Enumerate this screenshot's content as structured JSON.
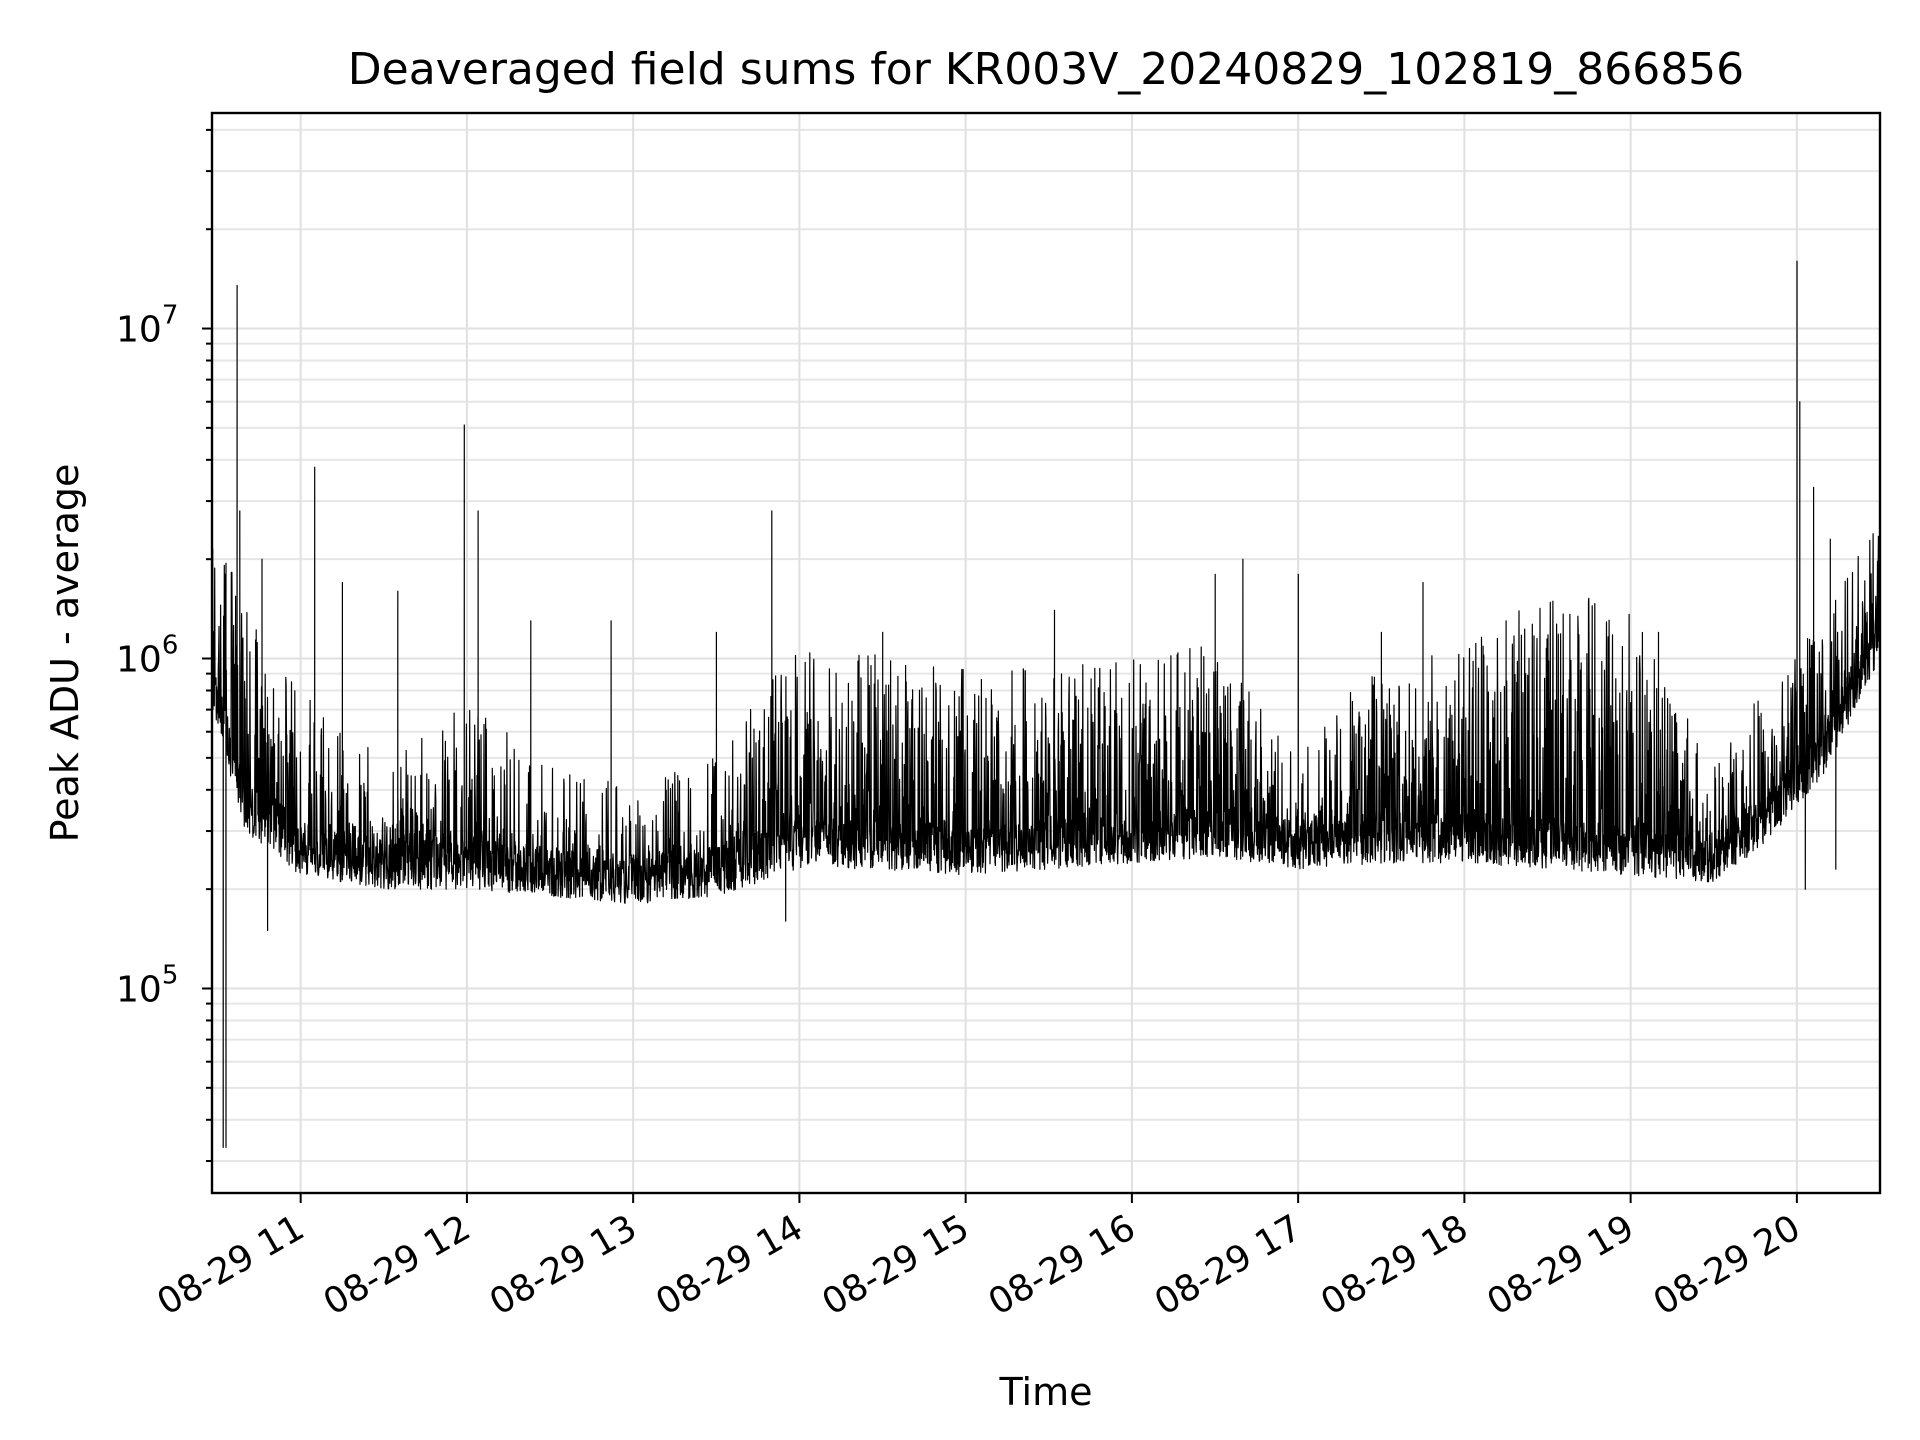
{
  "chart_data": {
    "type": "line",
    "title": "Deaveraged field sums for KR003V_20240829_102819_866856",
    "xlabel": "Time",
    "ylabel": "Peak ADU - average",
    "yscale": "log",
    "ylim": [
      24000,
      45000000
    ],
    "xlim": [
      "08-29 10:28",
      "08-29 20:30"
    ],
    "x_ticks": [
      {
        "value": "08-29 11:00",
        "label": "08-29 11"
      },
      {
        "value": "08-29 12:00",
        "label": "08-29 12"
      },
      {
        "value": "08-29 13:00",
        "label": "08-29 13"
      },
      {
        "value": "08-29 14:00",
        "label": "08-29 14"
      },
      {
        "value": "08-29 15:00",
        "label": "08-29 15"
      },
      {
        "value": "08-29 16:00",
        "label": "08-29 16"
      },
      {
        "value": "08-29 17:00",
        "label": "08-29 17"
      },
      {
        "value": "08-29 18:00",
        "label": "08-29 18"
      },
      {
        "value": "08-29 19:00",
        "label": "08-29 19"
      },
      {
        "value": "08-29 20:00",
        "label": "08-29 20"
      }
    ],
    "y_ticks": [
      {
        "value": 100000,
        "base": "10",
        "exp": "5"
      },
      {
        "value": 1000000,
        "base": "10",
        "exp": "6"
      },
      {
        "value": 10000000,
        "base": "10",
        "exp": "7"
      }
    ],
    "grid": true,
    "legend": "none",
    "color": "#000000",
    "baseline_profile": [
      {
        "time": "08-29 10:28",
        "lo": 700000,
        "hi": 1800000
      },
      {
        "time": "08-29 10:40",
        "lo": 300000,
        "hi": 900000
      },
      {
        "time": "08-29 11:00",
        "lo": 220000,
        "hi": 500000
      },
      {
        "time": "08-29 11:30",
        "lo": 200000,
        "hi": 330000
      },
      {
        "time": "08-29 12:00",
        "lo": 200000,
        "hi": 480000
      },
      {
        "time": "08-29 12:30",
        "lo": 190000,
        "hi": 300000
      },
      {
        "time": "08-29 13:00",
        "lo": 180000,
        "hi": 260000
      },
      {
        "time": "08-29 13:30",
        "lo": 190000,
        "hi": 330000
      },
      {
        "time": "08-29 14:00",
        "lo": 230000,
        "hi": 700000
      },
      {
        "time": "08-29 14:30",
        "lo": 230000,
        "hi": 650000
      },
      {
        "time": "08-29 15:00",
        "lo": 220000,
        "hi": 600000
      },
      {
        "time": "08-29 15:30",
        "lo": 230000,
        "hi": 600000
      },
      {
        "time": "08-29 16:00",
        "lo": 240000,
        "hi": 650000
      },
      {
        "time": "08-29 16:30",
        "lo": 250000,
        "hi": 700000
      },
      {
        "time": "08-29 17:00",
        "lo": 230000,
        "hi": 330000
      },
      {
        "time": "08-29 17:30",
        "lo": 240000,
        "hi": 650000
      },
      {
        "time": "08-29 18:00",
        "lo": 240000,
        "hi": 700000
      },
      {
        "time": "08-29 18:30",
        "lo": 230000,
        "hi": 1050000
      },
      {
        "time": "08-29 19:00",
        "lo": 220000,
        "hi": 900000
      },
      {
        "time": "08-29 19:30",
        "lo": 210000,
        "hi": 300000
      },
      {
        "time": "08-29 19:50",
        "lo": 280000,
        "hi": 550000
      },
      {
        "time": "08-29 20:10",
        "lo": 450000,
        "hi": 900000
      },
      {
        "time": "08-29 20:30",
        "lo": 1000000,
        "hi": 1800000
      }
    ],
    "peaks": [
      {
        "time": "08-29 10:37",
        "value": 13500000
      },
      {
        "time": "08-29 10:38",
        "value": 2800000
      },
      {
        "time": "08-29 10:46",
        "value": 2000000
      },
      {
        "time": "08-29 11:05",
        "value": 3800000
      },
      {
        "time": "08-29 11:15",
        "value": 1700000
      },
      {
        "time": "08-29 11:35",
        "value": 1600000
      },
      {
        "time": "08-29 11:59",
        "value": 5100000
      },
      {
        "time": "08-29 12:04",
        "value": 2800000
      },
      {
        "time": "08-29 12:23",
        "value": 1300000
      },
      {
        "time": "08-29 12:52",
        "value": 1300000
      },
      {
        "time": "08-29 13:30",
        "value": 1200000
      },
      {
        "time": "08-29 13:50",
        "value": 2800000
      },
      {
        "time": "08-29 14:30",
        "value": 1200000
      },
      {
        "time": "08-29 15:32",
        "value": 1400000
      },
      {
        "time": "08-29 16:30",
        "value": 1800000
      },
      {
        "time": "08-29 16:40",
        "value": 2000000
      },
      {
        "time": "08-29 17:00",
        "value": 1800000
      },
      {
        "time": "08-29 17:30",
        "value": 1200000
      },
      {
        "time": "08-29 17:45",
        "value": 1700000
      },
      {
        "time": "08-29 18:15",
        "value": 1300000
      },
      {
        "time": "08-29 19:10",
        "value": 1200000
      },
      {
        "time": "08-29 20:00",
        "value": 16000000
      },
      {
        "time": "08-29 20:01",
        "value": 6000000
      },
      {
        "time": "08-29 20:06",
        "value": 3300000
      },
      {
        "time": "08-29 20:12",
        "value": 2300000
      }
    ],
    "dips": [
      {
        "time": "08-29 10:32",
        "value": 33000
      },
      {
        "time": "08-29 10:33",
        "value": 33000
      },
      {
        "time": "08-29 10:48",
        "value": 150000
      },
      {
        "time": "08-29 13:55",
        "value": 160000
      },
      {
        "time": "08-29 20:03",
        "value": 200000
      },
      {
        "time": "08-29 20:14",
        "value": 230000
      }
    ]
  }
}
